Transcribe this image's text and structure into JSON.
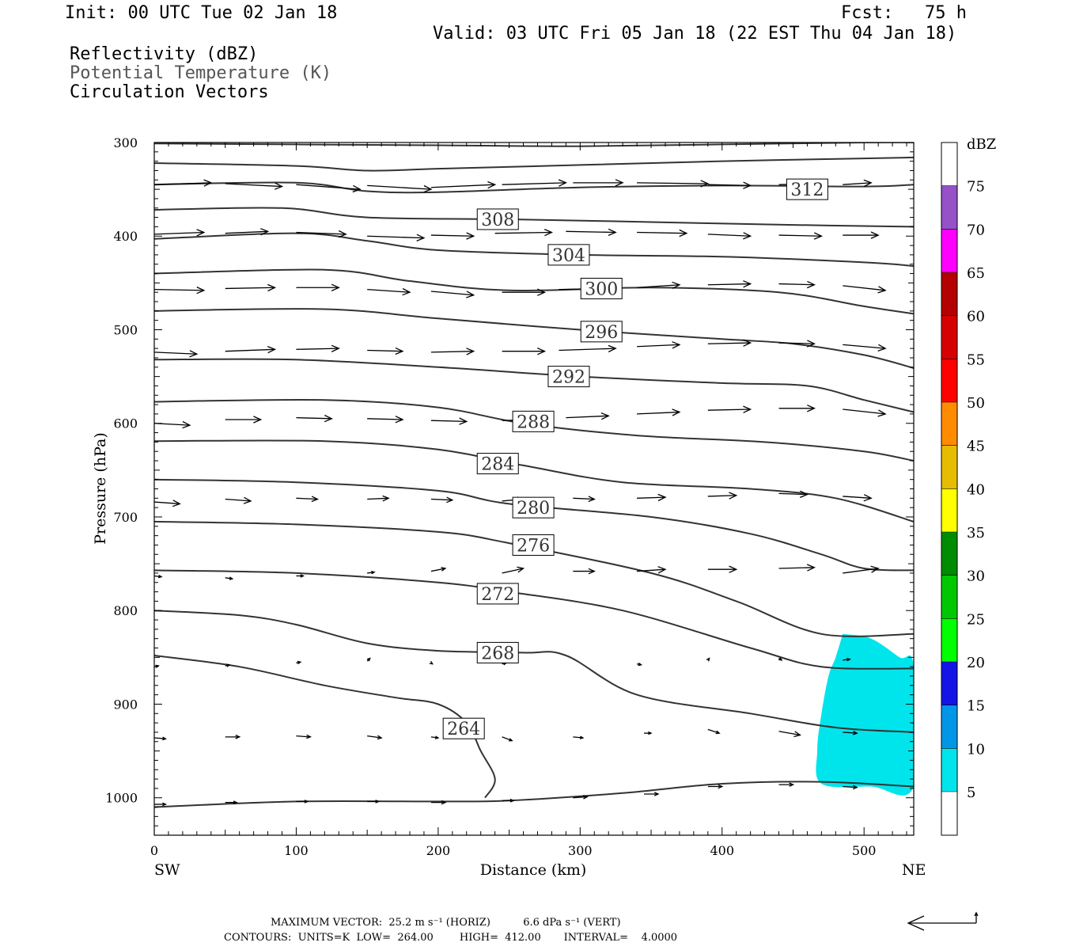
{
  "header": {
    "init": "Init: 00 UTC Tue 02 Jan 18",
    "fcst": "Fcst:   75 h",
    "valid": "Valid: 03 UTC Fri 05 Jan 18 (22 EST Thu 04 Jan 18)",
    "fields": [
      "Reflectivity (dBZ)",
      "Potential Temperature (K)",
      "Circulation Vectors"
    ]
  },
  "footer": {
    "max_vector": "MAXIMUM VECTOR:  25.2 m s⁻¹ (HORIZ)          6.6 dPa s⁻¹ (VERT)",
    "contours": "CONTOURS:  UNITS=K  LOW=  264.00        HIGH=  412.00       INTERVAL=    4.0000"
  },
  "colors": {
    "contour": "#333333",
    "reflectivity_5": "#00e5ec"
  },
  "chart_data": {
    "type": "cross-section",
    "xlabel": "Distance (km)",
    "ylabel": "Pressure (hPa)",
    "x_end_labels": [
      "SW",
      "NE"
    ],
    "xlim": [
      0,
      535
    ],
    "ylim": [
      1040,
      300
    ],
    "xticks": [
      0,
      100,
      200,
      300,
      400,
      500
    ],
    "yticks": [
      300,
      400,
      500,
      600,
      700,
      800,
      900,
      1000
    ],
    "colorbar": {
      "title": "dBZ",
      "levels": [
        5,
        10,
        15,
        20,
        25,
        30,
        35,
        40,
        45,
        50,
        55,
        60,
        65,
        70,
        75
      ],
      "colors": [
        "#00e5ec",
        "#0096e8",
        "#1414e6",
        "#00ff00",
        "#00c800",
        "#008c00",
        "#ffff00",
        "#e6bc00",
        "#ff8c00",
        "#ff0000",
        "#d60000",
        "#b40000",
        "#ff00ff",
        "#9650c8",
        "#ffffff"
      ]
    },
    "isentropes": [
      {
        "theta": null,
        "points": [
          [
            0,
            301
          ],
          [
            100,
            302
          ],
          [
            200,
            303
          ],
          [
            300,
            304
          ],
          [
            400,
            302
          ],
          [
            500,
            300
          ],
          [
            535,
            300
          ]
        ]
      },
      {
        "theta": null,
        "points": [
          [
            0,
            322
          ],
          [
            100,
            325
          ],
          [
            150,
            330
          ],
          [
            200,
            328
          ],
          [
            300,
            324
          ],
          [
            400,
            320
          ],
          [
            500,
            317
          ],
          [
            535,
            316
          ]
        ]
      },
      {
        "theta": 312,
        "points": [
          [
            0,
            345
          ],
          [
            100,
            343
          ],
          [
            150,
            352
          ],
          [
            200,
            353
          ],
          [
            300,
            348
          ],
          [
            400,
            346
          ],
          [
            500,
            347
          ],
          [
            535,
            345
          ]
        ]
      },
      {
        "theta": 308,
        "points": [
          [
            0,
            372
          ],
          [
            90,
            370
          ],
          [
            150,
            380
          ],
          [
            250,
            382
          ],
          [
            350,
            385
          ],
          [
            450,
            388
          ],
          [
            535,
            390
          ]
        ]
      },
      {
        "theta": 304,
        "points": [
          [
            0,
            403
          ],
          [
            100,
            397
          ],
          [
            150,
            405
          ],
          [
            200,
            415
          ],
          [
            300,
            420
          ],
          [
            400,
            422
          ],
          [
            500,
            428
          ],
          [
            535,
            432
          ]
        ]
      },
      {
        "theta": 300,
        "points": [
          [
            0,
            440
          ],
          [
            120,
            436
          ],
          [
            180,
            448
          ],
          [
            250,
            458
          ],
          [
            350,
            455
          ],
          [
            440,
            460
          ],
          [
            500,
            475
          ],
          [
            535,
            483
          ]
        ]
      },
      {
        "theta": 296,
        "points": [
          [
            0,
            480
          ],
          [
            120,
            478
          ],
          [
            200,
            488
          ],
          [
            300,
            500
          ],
          [
            400,
            510
          ],
          [
            450,
            515
          ],
          [
            500,
            527
          ],
          [
            535,
            541
          ]
        ]
      },
      {
        "theta": 292,
        "points": [
          [
            0,
            532
          ],
          [
            100,
            532
          ],
          [
            200,
            540
          ],
          [
            300,
            550
          ],
          [
            400,
            557
          ],
          [
            460,
            560
          ],
          [
            500,
            575
          ],
          [
            535,
            588
          ]
        ]
      },
      {
        "theta": 288,
        "points": [
          [
            0,
            577
          ],
          [
            120,
            575
          ],
          [
            200,
            583
          ],
          [
            260,
            600
          ],
          [
            340,
            613
          ],
          [
            430,
            620
          ],
          [
            500,
            630
          ],
          [
            535,
            640
          ]
        ]
      },
      {
        "theta": 284,
        "points": [
          [
            0,
            619
          ],
          [
            120,
            619
          ],
          [
            200,
            628
          ],
          [
            260,
            645
          ],
          [
            330,
            663
          ],
          [
            420,
            670
          ],
          [
            480,
            680
          ],
          [
            535,
            705
          ]
        ]
      },
      {
        "theta": 280,
        "points": [
          [
            0,
            660
          ],
          [
            100,
            663
          ],
          [
            200,
            672
          ],
          [
            250,
            686
          ],
          [
            350,
            700
          ],
          [
            420,
            718
          ],
          [
            470,
            740
          ],
          [
            500,
            755
          ],
          [
            535,
            757
          ]
        ]
      },
      {
        "theta": 276,
        "points": [
          [
            0,
            705
          ],
          [
            100,
            708
          ],
          [
            200,
            716
          ],
          [
            250,
            728
          ],
          [
            350,
            760
          ],
          [
            410,
            790
          ],
          [
            470,
            825
          ],
          [
            535,
            825
          ]
        ]
      },
      {
        "theta": 272,
        "points": [
          [
            0,
            757
          ],
          [
            100,
            760
          ],
          [
            200,
            770
          ],
          [
            250,
            780
          ],
          [
            330,
            800
          ],
          [
            420,
            840
          ],
          [
            470,
            860
          ],
          [
            535,
            862
          ]
        ]
      },
      {
        "theta": 268,
        "points": [
          [
            0,
            800
          ],
          [
            60,
            805
          ],
          [
            100,
            815
          ],
          [
            150,
            835
          ],
          [
            200,
            843
          ],
          [
            260,
            845
          ],
          [
            290,
            848
          ],
          [
            340,
            890
          ],
          [
            420,
            910
          ],
          [
            480,
            925
          ],
          [
            535,
            930
          ]
        ]
      },
      {
        "theta": 264,
        "points": [
          [
            0,
            848
          ],
          [
            60,
            860
          ],
          [
            120,
            880
          ],
          [
            170,
            893
          ],
          [
            200,
            900
          ],
          [
            220,
            920
          ],
          [
            230,
            950
          ],
          [
            240,
            980
          ],
          [
            233,
            1000
          ]
        ]
      },
      {
        "theta": null,
        "points": [
          [
            0,
            1010
          ],
          [
            100,
            1004
          ],
          [
            200,
            1004
          ],
          [
            250,
            1003
          ],
          [
            330,
            995
          ],
          [
            400,
            985
          ],
          [
            470,
            983
          ],
          [
            535,
            988
          ]
        ]
      }
    ],
    "theta_labels": [
      {
        "text": "312",
        "x": 460,
        "p": 350
      },
      {
        "text": "308",
        "x": 242,
        "p": 382
      },
      {
        "text": "304",
        "x": 292,
        "p": 420
      },
      {
        "text": "300",
        "x": 315,
        "p": 456
      },
      {
        "text": "296",
        "x": 315,
        "p": 502
      },
      {
        "text": "292",
        "x": 292,
        "p": 550
      },
      {
        "text": "288",
        "x": 267,
        "p": 598
      },
      {
        "text": "284",
        "x": 242,
        "p": 643
      },
      {
        "text": "280",
        "x": 267,
        "p": 690
      },
      {
        "text": "276",
        "x": 267,
        "p": 730
      },
      {
        "text": "272",
        "x": 242,
        "p": 782
      },
      {
        "text": "268",
        "x": 242,
        "p": 845
      },
      {
        "text": "264",
        "x": 218,
        "p": 926
      }
    ],
    "reflectivity_region": {
      "dbz_level": 5,
      "points": [
        [
          485,
          825
        ],
        [
          505,
          830
        ],
        [
          525,
          850
        ],
        [
          535,
          860
        ],
        [
          535,
          988
        ],
        [
          505,
          988
        ],
        [
          470,
          985
        ],
        [
          467,
          950
        ],
        [
          470,
          910
        ],
        [
          475,
          870
        ],
        [
          480,
          850
        ]
      ]
    },
    "vectors": [
      [
        0,
        345,
        40,
        343
      ],
      [
        50,
        344,
        90,
        347
      ],
      [
        100,
        345,
        145,
        350
      ],
      [
        150,
        346,
        195,
        350
      ],
      [
        195,
        348,
        240,
        345
      ],
      [
        245,
        345,
        290,
        343
      ],
      [
        295,
        343,
        330,
        343
      ],
      [
        340,
        343,
        390,
        344
      ],
      [
        390,
        345,
        420,
        346
      ],
      [
        440,
        345,
        470,
        344
      ],
      [
        485,
        345,
        505,
        343
      ],
      [
        0,
        398,
        35,
        396
      ],
      [
        50,
        397,
        80,
        395
      ],
      [
        100,
        396,
        135,
        398
      ],
      [
        150,
        400,
        190,
        402
      ],
      [
        195,
        399,
        225,
        400
      ],
      [
        240,
        397,
        280,
        396
      ],
      [
        290,
        395,
        325,
        396
      ],
      [
        340,
        396,
        375,
        397
      ],
      [
        390,
        398,
        420,
        400
      ],
      [
        440,
        399,
        470,
        400
      ],
      [
        485,
        399,
        510,
        399
      ],
      [
        0,
        457,
        35,
        458
      ],
      [
        50,
        456,
        85,
        455
      ],
      [
        100,
        455,
        130,
        455
      ],
      [
        150,
        457,
        180,
        460
      ],
      [
        195,
        459,
        225,
        463
      ],
      [
        245,
        460,
        275,
        460
      ],
      [
        285,
        457,
        325,
        456
      ],
      [
        340,
        455,
        370,
        452
      ],
      [
        390,
        452,
        420,
        451
      ],
      [
        440,
        451,
        465,
        452
      ],
      [
        485,
        453,
        515,
        458
      ],
      [
        0,
        524,
        30,
        526
      ],
      [
        50,
        523,
        85,
        521
      ],
      [
        100,
        521,
        130,
        520
      ],
      [
        150,
        522,
        175,
        523
      ],
      [
        195,
        524,
        225,
        523
      ],
      [
        245,
        523,
        275,
        523
      ],
      [
        285,
        522,
        325,
        520
      ],
      [
        340,
        518,
        370,
        516
      ],
      [
        390,
        515,
        420,
        514
      ],
      [
        440,
        514,
        465,
        515
      ],
      [
        485,
        516,
        515,
        520
      ],
      [
        0,
        600,
        25,
        602
      ],
      [
        50,
        596,
        75,
        596
      ],
      [
        100,
        594,
        125,
        595
      ],
      [
        150,
        595,
        175,
        596
      ],
      [
        195,
        597,
        220,
        598
      ],
      [
        245,
        597,
        270,
        596
      ],
      [
        290,
        594,
        320,
        592
      ],
      [
        340,
        590,
        370,
        588
      ],
      [
        390,
        586,
        420,
        585
      ],
      [
        440,
        584,
        465,
        584
      ],
      [
        485,
        585,
        515,
        590
      ],
      [
        0,
        684,
        18,
        686
      ],
      [
        50,
        681,
        68,
        683
      ],
      [
        100,
        680,
        115,
        681
      ],
      [
        150,
        681,
        165,
        680
      ],
      [
        195,
        681,
        210,
        682
      ],
      [
        245,
        683,
        260,
        681
      ],
      [
        295,
        680,
        310,
        681
      ],
      [
        340,
        680,
        360,
        679
      ],
      [
        390,
        678,
        410,
        677
      ],
      [
        440,
        675,
        460,
        676
      ],
      [
        485,
        678,
        505,
        680
      ],
      [
        0,
        763,
        5,
        764
      ],
      [
        50,
        765,
        55,
        766
      ],
      [
        100,
        763,
        105,
        763
      ],
      [
        150,
        760,
        155,
        759
      ],
      [
        195,
        758,
        205,
        755
      ],
      [
        245,
        760,
        260,
        755
      ],
      [
        295,
        758,
        310,
        758
      ],
      [
        340,
        758,
        360,
        756
      ],
      [
        390,
        756,
        410,
        756
      ],
      [
        440,
        755,
        465,
        754
      ],
      [
        485,
        760,
        510,
        755
      ],
      [
        0,
        860,
        3,
        859
      ],
      [
        50,
        859,
        53,
        858
      ],
      [
        100,
        856,
        103,
        855
      ],
      [
        150,
        854,
        152,
        851
      ],
      [
        195,
        856,
        196,
        857
      ],
      [
        245,
        857,
        248,
        856
      ],
      [
        340,
        857,
        343,
        858
      ],
      [
        390,
        853,
        391,
        851
      ],
      [
        440,
        851,
        442,
        853
      ],
      [
        485,
        853,
        490,
        852
      ],
      [
        0,
        936,
        8,
        937
      ],
      [
        50,
        935,
        60,
        935
      ],
      [
        100,
        934,
        110,
        935
      ],
      [
        150,
        934,
        160,
        936
      ],
      [
        195,
        935,
        200,
        936
      ],
      [
        245,
        935,
        252,
        939
      ],
      [
        295,
        935,
        302,
        936
      ],
      [
        345,
        931,
        350,
        931
      ],
      [
        390,
        927,
        398,
        931
      ],
      [
        440,
        929,
        455,
        933
      ],
      [
        485,
        930,
        495,
        931
      ],
      [
        0,
        1007,
        8,
        1007
      ],
      [
        50,
        1005,
        58,
        1005
      ],
      [
        100,
        1004,
        108,
        1004
      ],
      [
        150,
        1004,
        158,
        1004
      ],
      [
        195,
        1005,
        205,
        1005
      ],
      [
        245,
        1003,
        253,
        1003
      ],
      [
        295,
        1000,
        305,
        999
      ],
      [
        345,
        996,
        355,
        996
      ],
      [
        390,
        988,
        400,
        988
      ],
      [
        440,
        986,
        450,
        986
      ],
      [
        485,
        988,
        495,
        989
      ]
    ]
  }
}
